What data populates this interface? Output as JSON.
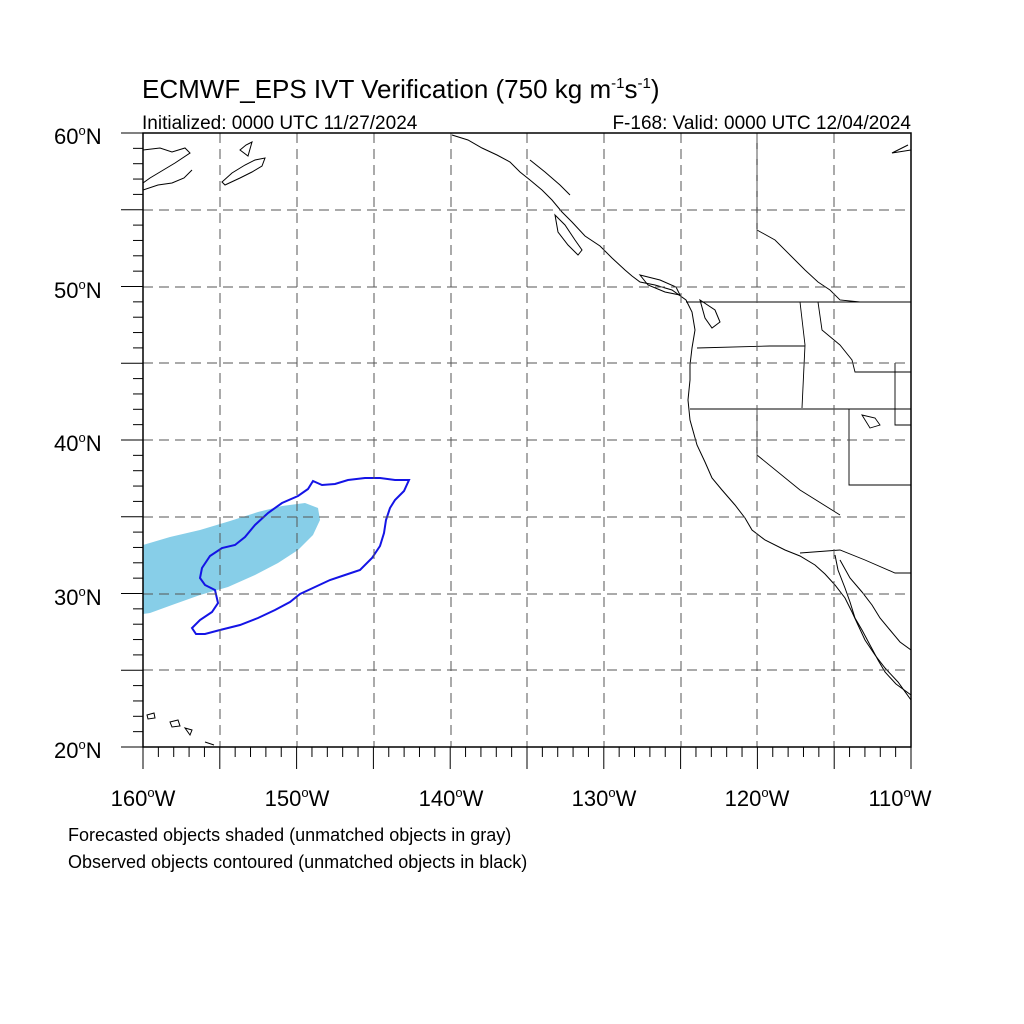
{
  "title_main": "ECMWF_EPS IVT Verification (750 kg m",
  "title_sup1": "-1",
  "title_mid": "s",
  "title_sup2": "-1",
  "title_end": ")",
  "initialized": "Initialized: 0000 UTC 11/27/2024",
  "valid": "F-168: Valid: 0000 UTC 12/04/2024",
  "lat_labels": [
    "60",
    "50",
    "40",
    "30",
    "20"
  ],
  "lon_labels": [
    "160",
    "150",
    "140",
    "130",
    "120",
    "110"
  ],
  "lat_suffix": "N",
  "lon_suffix": "W",
  "deg": "o",
  "caption1": "Forecasted objects shaded (unmatched objects in gray)",
  "caption2": "Observed objects contoured (unmatched objects in black)",
  "colors": {
    "forecast_fill": "#87CEE8",
    "observed_contour": "#1414E6",
    "grid": "#555555",
    "coastline": "#000000"
  },
  "map_extent": {
    "lon_range": [
      -160,
      -110
    ],
    "lat_range": [
      20,
      60
    ]
  }
}
